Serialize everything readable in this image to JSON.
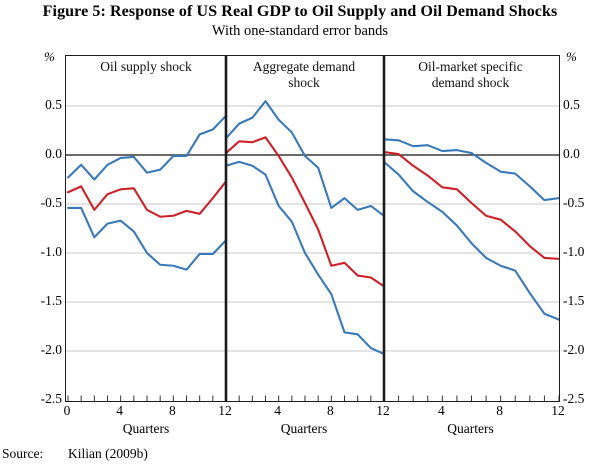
{
  "title": "Figure 5: Response of US Real GDP to Oil Supply and Oil Demand Shocks",
  "subtitle": "With one-standard error bands",
  "source": {
    "label": "Source:",
    "value": "Kilian (2009b)"
  },
  "axes": {
    "y_unit": "%",
    "y_ticks": [
      {
        "label": "0.5",
        "value": 0.5
      },
      {
        "label": "0.0",
        "value": 0.0
      },
      {
        "label": "-0.5",
        "value": -0.5
      },
      {
        "label": "-1.0",
        "value": -1.0
      },
      {
        "label": "-1.5",
        "value": -1.5
      },
      {
        "label": "-2.0",
        "value": -2.0
      },
      {
        "label": "-2.5",
        "value": -2.5
      }
    ],
    "gridline_values": [
      0.5,
      -0.5,
      -1.0,
      -1.5,
      -2.0
    ],
    "zero_line_value": 0.0,
    "x_label": "Quarters",
    "x_range": [
      0,
      12
    ],
    "y_range_shown": [
      -2.5,
      0.5
    ]
  },
  "colors": {
    "band": "#3a79b8",
    "estimate": "#cc2128",
    "gridline": "#c8c8c8",
    "zero_line": "#3a3a3a",
    "frame": "#1c1c1c"
  },
  "chart_data": [
    {
      "type": "line",
      "title_lines": [
        "Oil supply shock"
      ],
      "x": [
        0,
        1,
        2,
        3,
        4,
        5,
        6,
        7,
        8,
        9,
        10,
        11,
        12
      ],
      "x_tick_labels": [
        {
          "label": "0",
          "q": 0
        },
        {
          "label": "4",
          "q": 4
        },
        {
          "label": "8",
          "q": 8
        },
        {
          "label": "12",
          "q": 12
        }
      ],
      "xlabel": "Quarters",
      "series": [
        {
          "name": "upper one-standard-error band",
          "color_key": "band",
          "values": [
            -0.23,
            -0.1,
            -0.25,
            -0.1,
            -0.03,
            -0.02,
            -0.18,
            -0.15,
            -0.01,
            -0.01,
            0.21,
            0.26,
            0.4
          ]
        },
        {
          "name": "point estimate",
          "color_key": "estimate",
          "values": [
            -0.38,
            -0.32,
            -0.56,
            -0.4,
            -0.35,
            -0.34,
            -0.56,
            -0.63,
            -0.62,
            -0.57,
            -0.6,
            -0.44,
            -0.27
          ]
        },
        {
          "name": "lower one-standard-error band",
          "color_key": "band",
          "values": [
            -0.54,
            -0.54,
            -0.84,
            -0.7,
            -0.67,
            -0.78,
            -1.0,
            -1.12,
            -1.13,
            -1.17,
            -1.01,
            -1.01,
            -0.87
          ]
        }
      ]
    },
    {
      "type": "line",
      "title_lines": [
        "Aggregate demand",
        "shock"
      ],
      "x": [
        0,
        1,
        2,
        3,
        4,
        5,
        6,
        7,
        8,
        9,
        10,
        11,
        12
      ],
      "x_tick_labels": [
        {
          "label": "4",
          "q": 4
        },
        {
          "label": "8",
          "q": 8
        },
        {
          "label": "12",
          "q": 12
        }
      ],
      "xlabel": "Quarters",
      "series": [
        {
          "name": "upper one-standard-error band",
          "color_key": "band",
          "values": [
            0.17,
            0.32,
            0.38,
            0.55,
            0.36,
            0.23,
            -0.01,
            -0.13,
            -0.54,
            -0.44,
            -0.56,
            -0.52,
            -0.62
          ]
        },
        {
          "name": "point estimate",
          "color_key": "estimate",
          "values": [
            0.02,
            0.14,
            0.13,
            0.18,
            -0.01,
            -0.23,
            -0.49,
            -0.76,
            -1.13,
            -1.1,
            -1.23,
            -1.25,
            -1.34
          ]
        },
        {
          "name": "lower one-standard-error band",
          "color_key": "band",
          "values": [
            -0.11,
            -0.07,
            -0.11,
            -0.2,
            -0.52,
            -0.68,
            -1.0,
            -1.22,
            -1.42,
            -1.81,
            -1.83,
            -1.97,
            -2.03
          ]
        }
      ]
    },
    {
      "type": "line",
      "title_lines": [
        "Oil-market specific",
        "demand shock"
      ],
      "x": [
        0,
        1,
        2,
        3,
        4,
        5,
        6,
        7,
        8,
        9,
        10,
        11,
        12
      ],
      "x_tick_labels": [
        {
          "label": "4",
          "q": 4
        },
        {
          "label": "8",
          "q": 8
        },
        {
          "label": "12",
          "q": 12
        }
      ],
      "xlabel": "Quarters",
      "series": [
        {
          "name": "upper one-standard-error band",
          "color_key": "band",
          "values": [
            0.16,
            0.15,
            0.09,
            0.1,
            0.04,
            0.05,
            0.02,
            -0.08,
            -0.17,
            -0.19,
            -0.32,
            -0.46,
            -0.44
          ]
        },
        {
          "name": "point estimate",
          "color_key": "estimate",
          "values": [
            0.03,
            0.01,
            -0.11,
            -0.21,
            -0.33,
            -0.35,
            -0.49,
            -0.62,
            -0.66,
            -0.78,
            -0.93,
            -1.05,
            -1.06
          ]
        },
        {
          "name": "lower one-standard-error band",
          "color_key": "band",
          "values": [
            -0.07,
            -0.2,
            -0.37,
            -0.48,
            -0.58,
            -0.72,
            -0.9,
            -1.05,
            -1.13,
            -1.18,
            -1.41,
            -1.62,
            -1.68
          ]
        }
      ]
    }
  ]
}
